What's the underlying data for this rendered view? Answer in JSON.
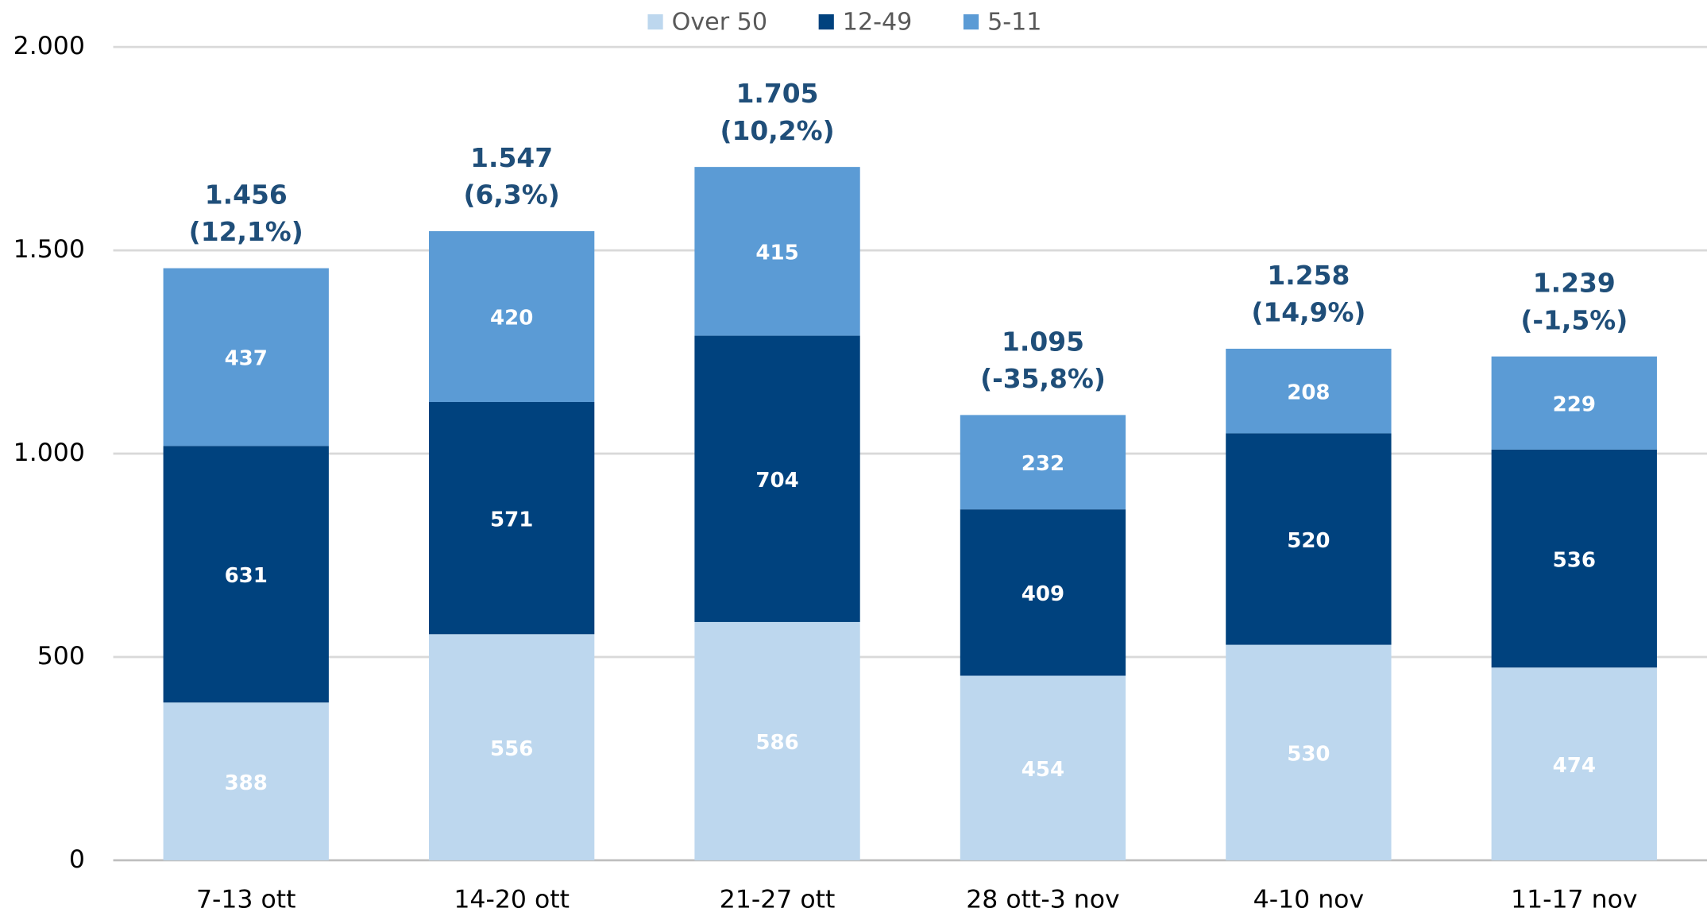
{
  "chart_data": {
    "type": "stacked_bar",
    "categories": [
      "7-13 ott",
      "14-20 ott",
      "21-27 ott",
      "28 ott-3 nov",
      "4-10 nov",
      "11-17 nov"
    ],
    "series": [
      {
        "name": "Over 50",
        "color": "#bdd7ee",
        "values": [
          388,
          556,
          586,
          454,
          530,
          474
        ]
      },
      {
        "name": "12-49",
        "color": "#00427e",
        "values": [
          631,
          571,
          704,
          409,
          520,
          536
        ]
      },
      {
        "name": "5-11",
        "color": "#5b9bd5",
        "values": [
          437,
          420,
          415,
          232,
          208,
          229
        ]
      }
    ],
    "totals": {
      "values": [
        1456,
        1547,
        1705,
        1095,
        1258,
        1239
      ],
      "value_labels": [
        "1.456",
        "1.547",
        "1.705",
        "1.095",
        "1.258",
        "1.239"
      ]
    },
    "change_labels": [
      "(12,1%)",
      "(6,3%)",
      "(10,2%)",
      "(-35,8%)",
      "(14,9%)",
      "(-1,5%)"
    ],
    "ylim": [
      0,
      2000
    ],
    "yticks": [
      0,
      500,
      {
        "value": 1000,
        "label": "1.000"
      },
      {
        "value": 1500,
        "label": "1.500"
      },
      {
        "value": 2000,
        "label": "2.000"
      }
    ],
    "grid": true,
    "legend": "top"
  }
}
